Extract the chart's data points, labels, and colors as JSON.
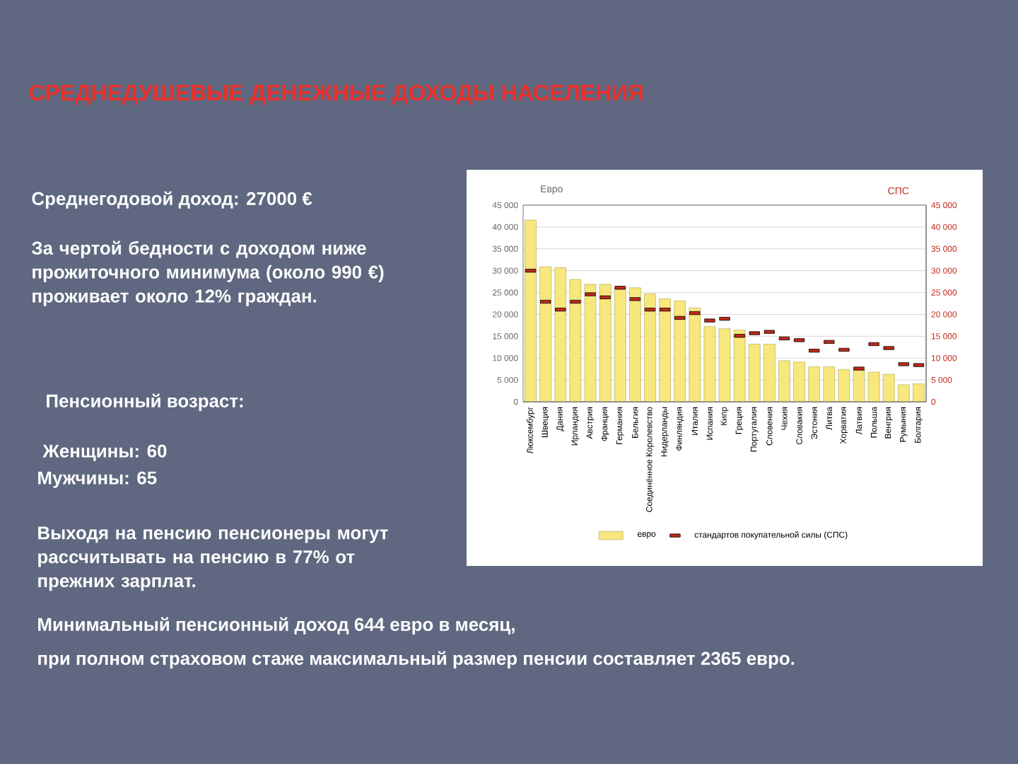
{
  "chart_data": {
    "type": "bar",
    "title": "СРЕДНЕДУШЕВЫЕ ДЕНЕЖНЫЕ ДОХОДЫ НАСЕЛЕНИЯ",
    "ylabel": "Евро",
    "y2label": "СПС",
    "categories": [
      "Люксембург",
      "Швеция",
      "Дания",
      "Ирландия",
      "Австрия",
      "Франция",
      "Германия",
      "Бельгия",
      "Соединённое Королевство",
      "Нидерланды",
      "Финляндия",
      "Италия",
      "Испания",
      "Кипр",
      "Греция",
      "Португалия",
      "Словения",
      "Чехия",
      "Словакия",
      "Эстония",
      "Литва",
      "Хорватия",
      "Латвия",
      "Польша",
      "Венгрия",
      "Румыния",
      "Болгария"
    ],
    "series": [
      {
        "name": "евро",
        "type": "bar",
        "color": "#f7e77c",
        "values": [
          41600,
          30900,
          30700,
          28000,
          26900,
          26900,
          26100,
          26100,
          24700,
          23600,
          23100,
          21500,
          17200,
          16700,
          16400,
          13200,
          13200,
          9400,
          9100,
          8000,
          8000,
          7400,
          7400,
          6800,
          6300,
          3900,
          4100
        ]
      },
      {
        "name": "стандартов покупательной силы (СПС)",
        "type": "scatter",
        "axis": "y2",
        "color": "#c0281a",
        "values": [
          30000,
          22900,
          21100,
          22900,
          24600,
          23900,
          26100,
          23500,
          21100,
          21100,
          19200,
          20300,
          18600,
          19000,
          15100,
          15700,
          16000,
          14500,
          14100,
          11700,
          13700,
          11900,
          7600,
          13200,
          12300,
          8600,
          8400
        ]
      }
    ],
    "ylim": [
      0,
      45000
    ],
    "yticks": [
      0,
      {
        "value": 5000,
        "label": "5 000"
      },
      {
        "value": 10000,
        "label": "10 000"
      },
      {
        "value": 15000,
        "label": "15 000"
      },
      {
        "value": 20000,
        "label": "20 000"
      },
      {
        "value": 25000,
        "label": "25 000"
      },
      {
        "value": 30000,
        "label": "30 000"
      },
      {
        "value": 35000,
        "label": "35 000"
      },
      {
        "value": 40000,
        "label": "40 000"
      },
      {
        "value": 45000,
        "label": "45 000"
      }
    ],
    "y2lim": [
      0,
      45000
    ],
    "y2ticks": [
      0,
      {
        "value": 5000,
        "label": "5 000"
      },
      {
        "value": 10000,
        "label": "10 000"
      },
      {
        "value": 15000,
        "label": "15 000"
      },
      {
        "value": 20000,
        "label": "20 000"
      },
      {
        "value": 25000,
        "label": "25 000"
      },
      {
        "value": 30000,
        "label": "30 000"
      },
      {
        "value": 35000,
        "label": "35 000"
      },
      {
        "value": 40000,
        "label": "40 000"
      },
      {
        "value": 45000,
        "label": "45 000"
      }
    ],
    "grid": "y",
    "legend": "bottom",
    "annotations": [
      "Среднегодовой доход: 27000 €",
      "За чертой бедности с доходом ниже прожиточного минимума (около 990 €) проживает около 12% граждан.",
      "Пенсионный возраст:",
      "Женщины: 60",
      "Мужчины: 65",
      "Выходя на пенсию пенсионеры могут рассчитывать на пенсию в 77% от прежних зарплат.",
      "Минимальный пенсионный доход 644 евро в месяц,",
      "при полном страховом стаже максимальный размер пенсии составляет 2365 евро."
    ]
  }
}
